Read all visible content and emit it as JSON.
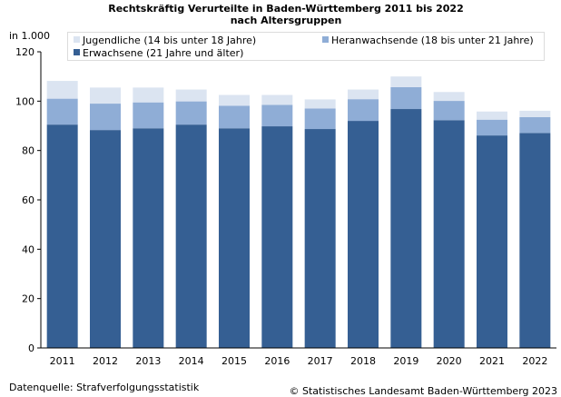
{
  "title_line1": "Rechtskräftig Verurteilte  in Baden-Württemberg 2011 bis 2022",
  "title_line2": "nach Altersgruppen",
  "unit_label": "in 1.000",
  "footer_source": "Datenquelle: Strafverfolgungsstatistik",
  "footer_copyright": "© Statistisches Landesamt Baden-Württemberg 2023",
  "colors": {
    "erwachsene": "#355f93",
    "heranwachsende": "#8fadd6",
    "jugendliche": "#dbe4f1",
    "axis": "#000000",
    "grid": "#e6e6e6"
  },
  "chart_data": {
    "type": "bar",
    "stacked": true,
    "categories": [
      "2011",
      "2012",
      "2013",
      "2014",
      "2015",
      "2016",
      "2017",
      "2018",
      "2019",
      "2020",
      "2021",
      "2022"
    ],
    "series": [
      {
        "name": "Erwachsene (21 Jahre und älter)",
        "values": [
          90.5,
          88.3,
          89.0,
          90.5,
          89.0,
          89.8,
          88.7,
          92.0,
          96.8,
          92.3,
          86.1,
          87.1
        ]
      },
      {
        "name": "Heranwachsende (18 bis unter 21 Jahre)",
        "values": [
          10.5,
          10.7,
          10.5,
          9.4,
          9.1,
          8.7,
          8.3,
          8.8,
          8.9,
          7.8,
          6.4,
          6.4
        ]
      },
      {
        "name": "Jugendliche (14 bis unter 18 Jahre)",
        "values": [
          7.2,
          6.5,
          6.0,
          4.8,
          4.4,
          4.0,
          3.7,
          3.9,
          4.3,
          3.6,
          3.3,
          2.6
        ]
      }
    ],
    "ylim": [
      0,
      120
    ],
    "yticks": [
      0,
      20,
      40,
      60,
      80,
      100,
      120
    ],
    "ylabel": "in 1.000",
    "grid": false,
    "legend_position": "top"
  }
}
